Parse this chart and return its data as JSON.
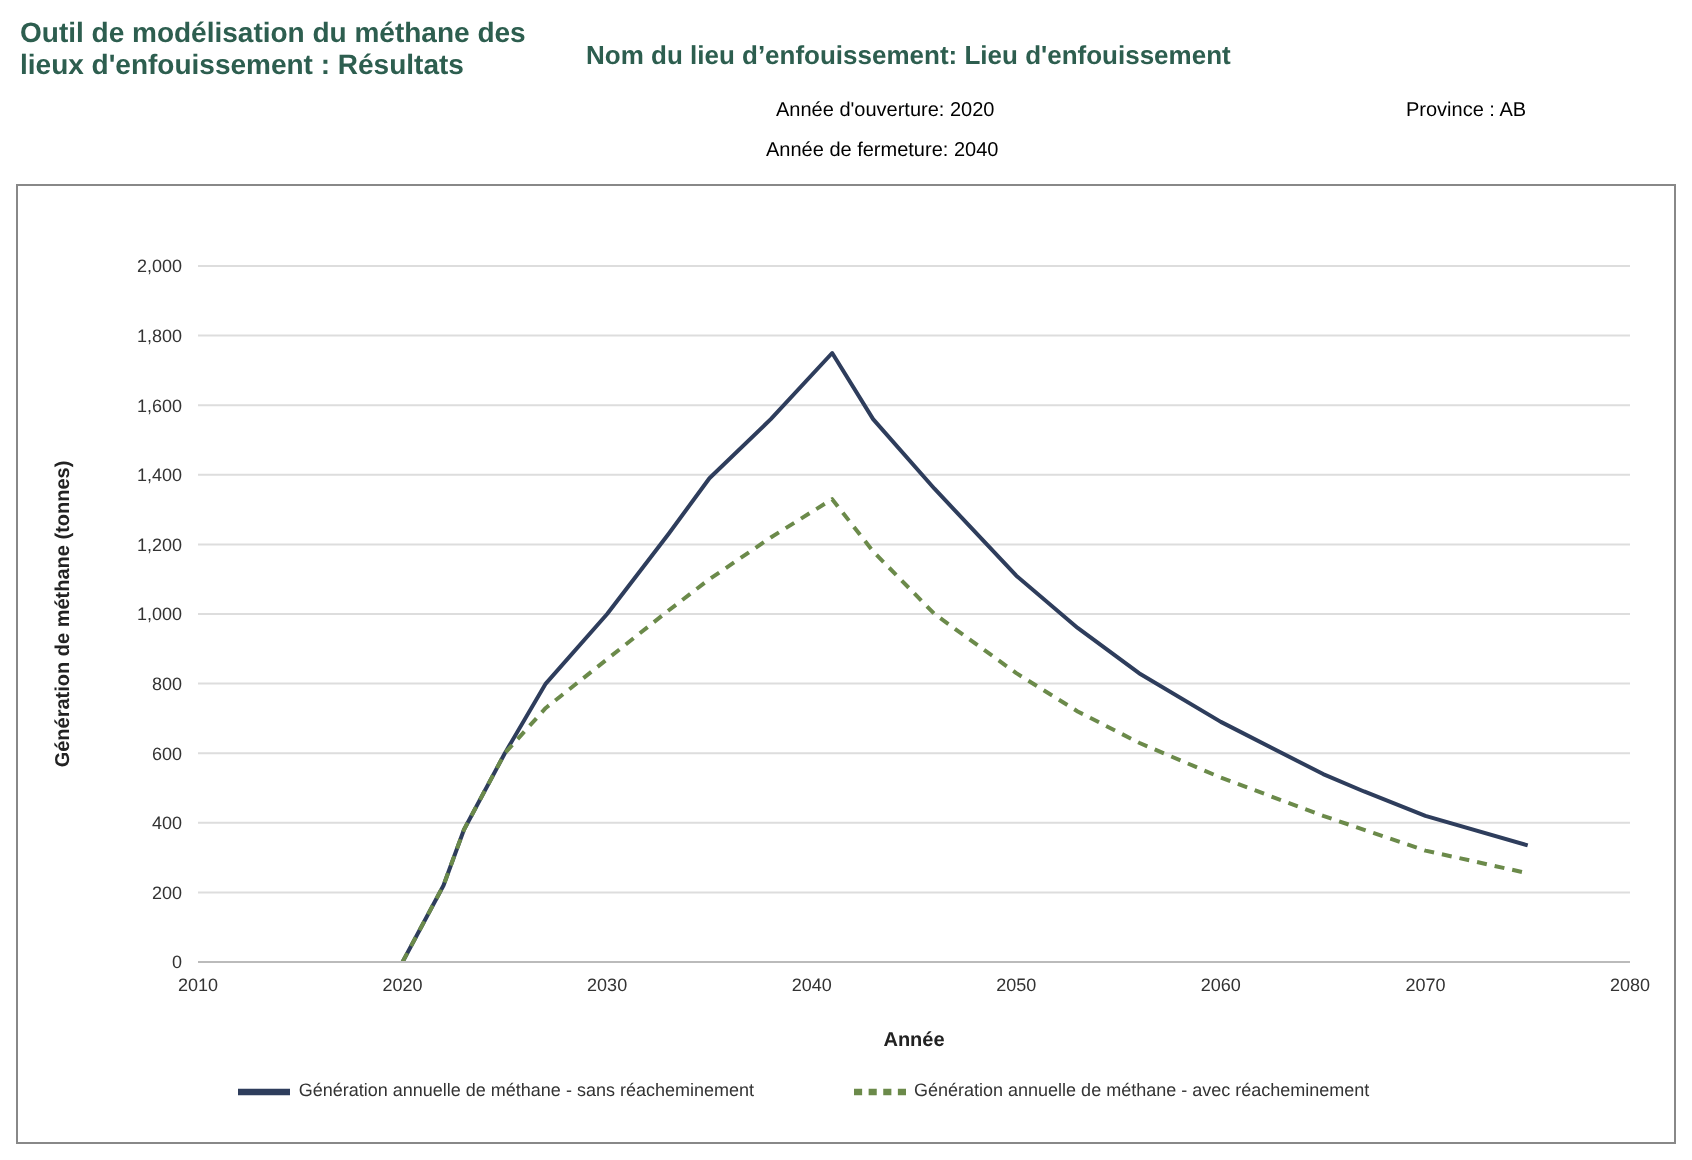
{
  "chart_data": {
    "type": "line",
    "title": "Outil de modélisation du méthane des lieux d'enfouissement : Résultats",
    "subtitle": "Nom du lieu d’enfouissement: Lieu d'enfouissement",
    "annotations": [
      "Année d'ouverture: 2020",
      "Province : AB",
      "Année de fermeture: 2040"
    ],
    "xlabel": "Année",
    "ylabel": "Génération de méthane (tonnes)",
    "xlim": [
      2010,
      2080
    ],
    "xticks": [
      2010,
      2020,
      2030,
      2040,
      2050,
      2060,
      2070,
      2080
    ],
    "ylim": [
      0,
      2000
    ],
    "yticks": [
      0,
      {
        "value": 200,
        "label": "200"
      },
      {
        "value": 400,
        "label": "400"
      },
      {
        "value": 600,
        "label": "600"
      },
      {
        "value": 800,
        "label": "800"
      },
      {
        "value": 1000,
        "label": "1,000"
      },
      {
        "value": 1200,
        "label": "1,200"
      },
      {
        "value": 1400,
        "label": "1,400"
      },
      {
        "value": 1600,
        "label": "1,600"
      },
      {
        "value": 1800,
        "label": "1,800"
      },
      {
        "value": 2000,
        "label": "2,000"
      }
    ],
    "grid": "y",
    "legend": "bottom",
    "marker": "none",
    "series": [
      {
        "name": "Génération annuelle de méthane - sans réacheminement",
        "color": "#2e3d5c",
        "line_style": "solid",
        "x": [
          2020,
          2022,
          2023,
          2025,
          2027,
          2030,
          2033,
          2035,
          2038,
          2041,
          2043,
          2046,
          2050,
          2053,
          2056,
          2060,
          2065,
          2067,
          2070,
          2075
        ],
        "values": [
          0,
          220,
          380,
          600,
          800,
          1000,
          1230,
          1390,
          1560,
          1750,
          1560,
          1360,
          1110,
          960,
          830,
          690,
          540,
          490,
          420,
          335
        ]
      },
      {
        "name": "Génération annuelle de méthane - avec réacheminement",
        "color": "#6b8a4a",
        "line_style": "dashed",
        "x": [
          2020,
          2022,
          2023,
          2025,
          2027,
          2030,
          2033,
          2035,
          2038,
          2041,
          2043,
          2046,
          2050,
          2053,
          2056,
          2060,
          2065,
          2070,
          2075
        ],
        "values": [
          0,
          220,
          380,
          600,
          730,
          870,
          1010,
          1100,
          1220,
          1330,
          1180,
          1000,
          830,
          720,
          630,
          530,
          420,
          320,
          255
        ]
      }
    ]
  }
}
